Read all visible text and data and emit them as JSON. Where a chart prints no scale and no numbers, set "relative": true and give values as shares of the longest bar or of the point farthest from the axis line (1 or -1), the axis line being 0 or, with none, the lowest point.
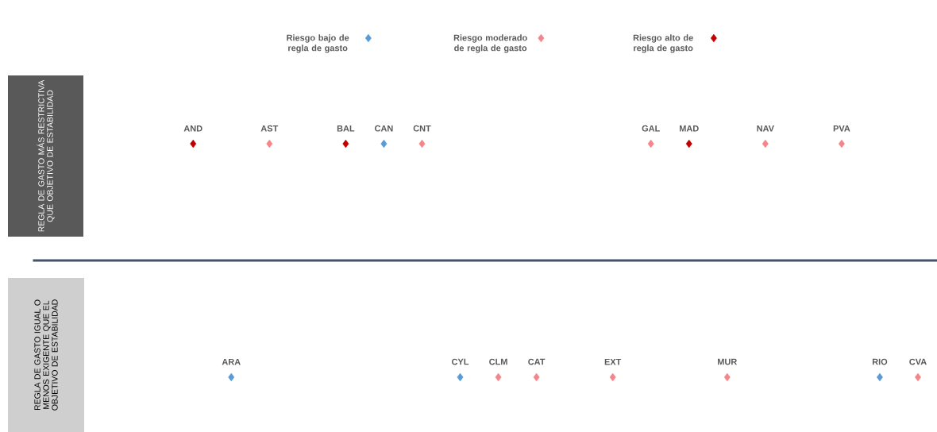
{
  "chart_data": {
    "type": "scatter",
    "relative": true,
    "marker": "diamond",
    "legend": "top",
    "categories": [
      "AND",
      "ARA",
      "AST",
      null,
      "BAL",
      "CAN",
      "CNT",
      "CYL",
      "CLM",
      "CAT",
      null,
      "EXT",
      "GAL",
      "MAD",
      "MUR",
      "NAV",
      null,
      "PVA",
      "RIO",
      "CVA"
    ],
    "series": [
      {
        "name": "Riesgo bajo de regla de gasto",
        "color": "#5b9bd5",
        "values": [
          null,
          0,
          null,
          null,
          null,
          1,
          null,
          0,
          null,
          null,
          null,
          null,
          null,
          null,
          null,
          null,
          null,
          null,
          0,
          null
        ]
      },
      {
        "name": "Riesgo moderado de regla de gasto",
        "color": "#f4868a",
        "values": [
          null,
          null,
          1,
          null,
          null,
          null,
          1,
          null,
          0,
          0,
          null,
          0,
          1,
          null,
          0,
          1,
          null,
          1,
          null,
          0
        ]
      },
      {
        "name": "Riesgo alto de regla de gasto",
        "color": "#c00000",
        "values": [
          1,
          null,
          null,
          null,
          1,
          null,
          null,
          null,
          null,
          null,
          null,
          null,
          null,
          1,
          null,
          null,
          null,
          null,
          null,
          null
        ]
      }
    ],
    "ref_lines": [
      {
        "axis": "y",
        "value": 0.5,
        "color": "#44546a"
      }
    ],
    "annotations": [
      "REGLA DE GASTO MÁS RESTRICTIVA QUE OBJETIVO DE ESTABILIDAD",
      "REGLA DE GASTO IGUAL O MENOS EXIGENTE QUE EL OBJETIVO DE ESTABILIDAD"
    ]
  }
}
